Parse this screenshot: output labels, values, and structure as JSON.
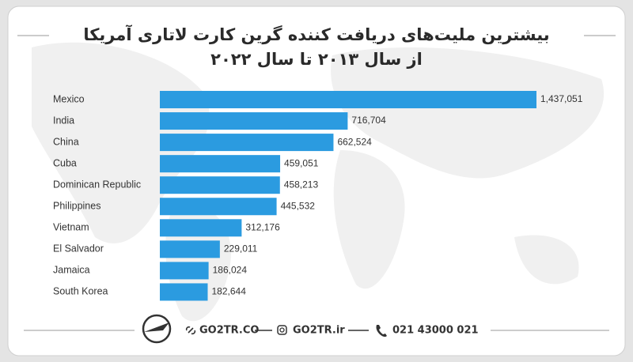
{
  "chart_data": {
    "type": "bar",
    "orientation": "horizontal",
    "title": "بیشترین ملیت‌های دریافت کننده گرین کارت لاتاری آمریکا",
    "subtitle": "از سال ۲۰۱۳ تا سال ۲۰۲۲",
    "categories": [
      "Mexico",
      "India",
      "China",
      "Cuba",
      "Dominican Republic",
      "Philippines",
      "Vietnam",
      "El Salvador",
      "Jamaica",
      "South Korea"
    ],
    "values": [
      1437051,
      716704,
      662524,
      459051,
      458213,
      445532,
      312176,
      229011,
      186024,
      182644
    ],
    "value_labels": [
      "1,437,051",
      "716,704",
      "662,524",
      "459,051",
      "458,213",
      "445,532",
      "312,176",
      "229,011",
      "186,024",
      "182,644"
    ],
    "color": "#2b9be0"
  },
  "footer": {
    "website": "GO2TR.CO",
    "instagram": "GO2TR.ir",
    "phone": "021 43000 021"
  }
}
